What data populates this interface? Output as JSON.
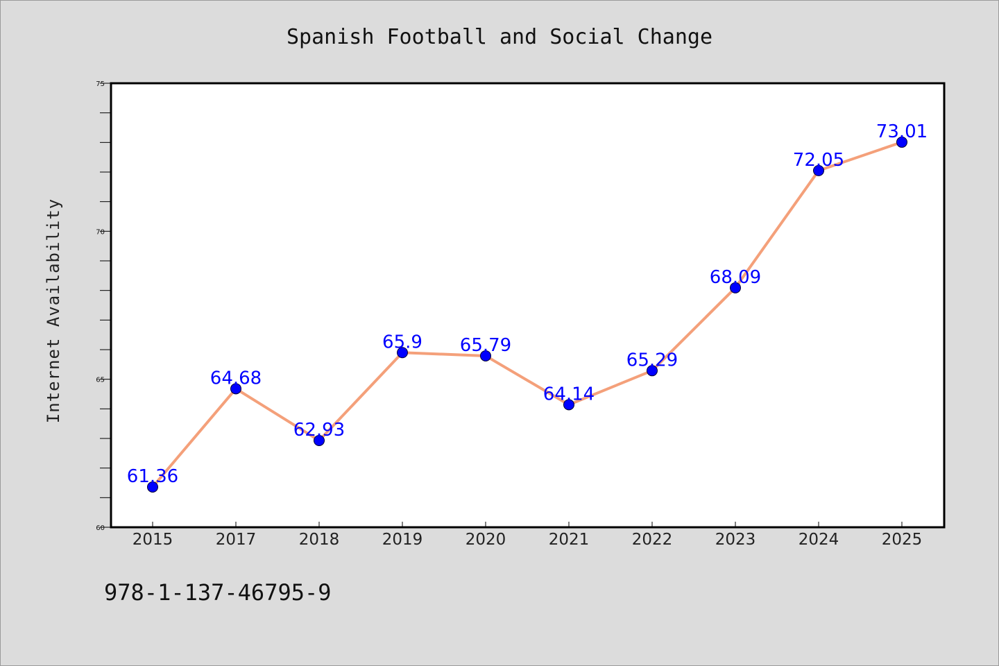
{
  "chart_data": {
    "type": "line",
    "title": "Spanish Football and Social Change",
    "xlabel": "",
    "ylabel": "Internet Availability",
    "categories": [
      "2015",
      "2017",
      "2018",
      "2019",
      "2020",
      "2021",
      "2022",
      "2023",
      "2024",
      "2025"
    ],
    "series": [
      {
        "values": [
          61.36,
          64.68,
          62.93,
          65.9,
          65.79,
          64.14,
          65.29,
          68.09,
          72.05,
          73.01
        ],
        "labels": [
          "61.36",
          "64.68",
          "62.93",
          "65.9",
          "65.79",
          "64.14",
          "65.29",
          "68.09",
          "72.05",
          "73.01"
        ],
        "line_color": "#f4a07a",
        "marker_color": "#0000ff"
      }
    ],
    "ylim": [
      60,
      75
    ],
    "yticks": [
      "60",
      "65",
      "70",
      "75"
    ],
    "grid": false,
    "legend": "none"
  },
  "footer": {
    "isbn": "978-1-137-46795-9"
  },
  "colors": {
    "background": "#dcdcdc",
    "plot_background": "#ffffff",
    "line": "#f4a07a",
    "marker": "#0000ff",
    "data_label": "#0000ff"
  }
}
